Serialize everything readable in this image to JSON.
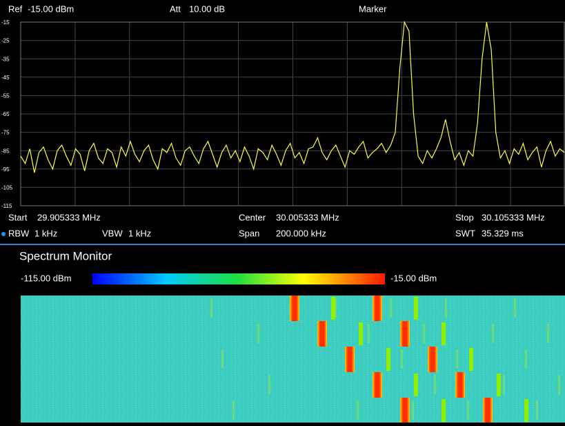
{
  "header": {
    "ref_label": "Ref",
    "ref_value": "-15.00 dBm",
    "att_label": "Att",
    "att_value": "10.00 dB",
    "mode": "Marker"
  },
  "chart_data": {
    "type": "line",
    "color": "#ffff40",
    "grid": true,
    "ylim": [
      -115,
      -15
    ],
    "yticks": [
      -15,
      -25,
      -35,
      -45,
      -55,
      -65,
      -75,
      -85,
      -95,
      -105,
      -115
    ],
    "values": [
      -88,
      -92,
      -84,
      -97,
      -86,
      -83,
      -90,
      -95,
      -85,
      -82,
      -88,
      -93,
      -84,
      -87,
      -96,
      -85,
      -81,
      -89,
      -92,
      -84,
      -86,
      -94,
      -83,
      -88,
      -80,
      -87,
      -91,
      -85,
      -82,
      -90,
      -95,
      -84,
      -86,
      -81,
      -89,
      -93,
      -85,
      -83,
      -88,
      -92,
      -84,
      -80,
      -87,
      -94,
      -86,
      -82,
      -89,
      -85,
      -91,
      -83,
      -88,
      -95,
      -84,
      -86,
      -90,
      -82,
      -87,
      -93,
      -85,
      -81,
      -89,
      -86,
      -92,
      -84,
      -83,
      -78,
      -86,
      -90,
      -85,
      -82,
      -88,
      -94,
      -85,
      -87,
      -83,
      -80,
      -89,
      -86,
      -84,
      -81,
      -86,
      -82,
      -75,
      -40,
      -15,
      -20,
      -65,
      -88,
      -92,
      -85,
      -89,
      -84,
      -78,
      -68,
      -80,
      -90,
      -86,
      -93,
      -85,
      -88,
      -70,
      -35,
      -15,
      -30,
      -75,
      -89,
      -85,
      -92,
      -84,
      -87,
      -81,
      -90,
      -86,
      -83,
      -94,
      -85,
      -80,
      -88,
      -84,
      -86
    ]
  },
  "info": {
    "start_label": "Start",
    "start_value": "29.905333 MHz",
    "center_label": "Center",
    "center_value": "30.005333 MHz",
    "stop_label": "Stop",
    "stop_value": "30.105333 MHz",
    "rbw_label": "RBW",
    "rbw_value": "1 kHz",
    "vbw_label": "VBW",
    "vbw_value": "1 kHz",
    "span_label": "Span",
    "span_value": "200.000 kHz",
    "swt_label": "SWT",
    "swt_value": "35.329 ms"
  },
  "monitor": {
    "title": "Spectrum Monitor",
    "scale_min": "-115.00 dBm",
    "scale_max": "-15.00 dBm"
  }
}
